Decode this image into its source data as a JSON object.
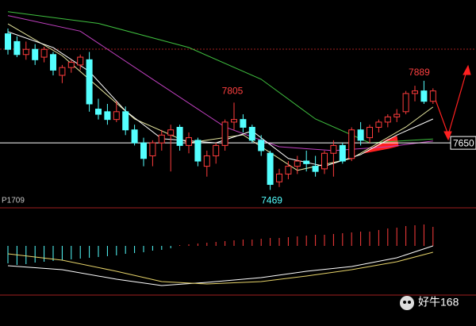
{
  "chart_data": {
    "type": "candlestick",
    "label": "P1709",
    "watermark": "好牛168",
    "ylim": [
      7400,
      8200
    ],
    "price_line": 7650,
    "up_color": "#ff3c3c",
    "down_color": "#54ffff",
    "open": [
      8070,
      8040,
      7990,
      8010,
      7980,
      7990,
      7910,
      7940,
      7950,
      7970,
      7780,
      7770,
      7740,
      7770,
      7700,
      7650,
      7600,
      7650,
      7680,
      7710,
      7640,
      7660,
      7560,
      7600,
      7640,
      7730,
      7740,
      7710,
      7660,
      7610,
      7500,
      7530,
      7560,
      7580,
      7560,
      7550,
      7610,
      7640,
      7590,
      7700,
      7670,
      7710,
      7730,
      7750,
      7770,
      7840,
      7850,
      7810
    ],
    "high": [
      8090,
      8060,
      8040,
      8030,
      8020,
      8000,
      7950,
      7970,
      7990,
      8000,
      7820,
      7800,
      7810,
      7790,
      7720,
      7670,
      7660,
      7700,
      7720,
      7720,
      7690,
      7670,
      7620,
      7650,
      7740,
      7805,
      7760,
      7720,
      7680,
      7620,
      7550,
      7580,
      7600,
      7620,
      7600,
      7620,
      7660,
      7650,
      7710,
      7730,
      7720,
      7740,
      7760,
      7780,
      7850,
      7870,
      7889,
      7860
    ],
    "low": [
      7990,
      7980,
      7970,
      7950,
      7960,
      7910,
      7880,
      7920,
      7930,
      7770,
      7740,
      7720,
      7730,
      7680,
      7640,
      7560,
      7560,
      7620,
      7540,
      7620,
      7610,
      7560,
      7520,
      7570,
      7620,
      7700,
      7690,
      7650,
      7600,
      7469,
      7480,
      7510,
      7530,
      7540,
      7520,
      7530,
      7520,
      7570,
      7580,
      7640,
      7650,
      7690,
      7710,
      7730,
      7760,
      7810,
      7800,
      7800
    ],
    "close": [
      8010,
      7990,
      8010,
      7970,
      8010,
      7930,
      7940,
      7960,
      7980,
      7800,
      7760,
      7740,
      7770,
      7700,
      7650,
      7590,
      7650,
      7680,
      7700,
      7640,
      7670,
      7580,
      7600,
      7640,
      7730,
      7740,
      7710,
      7660,
      7620,
      7490,
      7530,
      7560,
      7580,
      7570,
      7540,
      7610,
      7640,
      7580,
      7700,
      7660,
      7710,
      7730,
      7750,
      7760,
      7840,
      7850,
      7810,
      7850
    ],
    "lines": [
      {
        "color": "#3fbf3f",
        "x": [
          0,
          10,
          20,
          28,
          34,
          40,
          47
        ],
        "values": [
          8155,
          8110,
          8017,
          7895,
          7742,
          7650,
          7665
        ]
      },
      {
        "color": "#c040c0",
        "x": [
          0,
          8,
          16,
          24,
          30,
          36,
          42,
          47
        ],
        "values": [
          8140,
          8080,
          7895,
          7711,
          7635,
          7620,
          7635,
          7657
        ]
      },
      {
        "color": "#e8e8a0",
        "x": [
          0,
          6,
          14,
          20,
          26,
          32,
          38,
          44,
          47
        ],
        "values": [
          8108,
          7986,
          7742,
          7650,
          7681,
          7544,
          7590,
          7711,
          7788
        ]
      },
      {
        "color": "#ffffff",
        "x": [
          0,
          5,
          9,
          13,
          17,
          23,
          27,
          31,
          35,
          39,
          43,
          47
        ],
        "values": [
          8078,
          8017,
          7925,
          7773,
          7666,
          7650,
          7696,
          7590,
          7560,
          7605,
          7680,
          7742
        ]
      }
    ],
    "macd": {
      "ylim": [
        -60,
        48
      ],
      "hist": [
        -22,
        -24,
        -23,
        -21,
        -20,
        -19,
        -18,
        -17,
        -16,
        -15,
        -14,
        -13,
        -12,
        -10,
        -9,
        -8,
        -6,
        -5,
        -3,
        1,
        2,
        3,
        4,
        5,
        6,
        7,
        8,
        8,
        9,
        10,
        10,
        11,
        12,
        13,
        14,
        14,
        15,
        16,
        17,
        18,
        18,
        20,
        22,
        23,
        25,
        26,
        27,
        24
      ],
      "lines": [
        {
          "color": "#ffffff",
          "x": [
            0,
            6,
            12,
            17,
            22,
            28,
            33,
            38,
            43,
            47
          ],
          "values": [
            -25,
            -30,
            -42,
            -50,
            -46,
            -40,
            -32,
            -26,
            -15,
            0
          ]
        },
        {
          "color": "#e6d36a",
          "x": [
            0,
            6,
            12,
            17,
            22,
            28,
            33,
            38,
            43,
            47
          ],
          "values": [
            -10,
            -18,
            -32,
            -45,
            -48,
            -45,
            -38,
            -30,
            -20,
            -8
          ]
        }
      ]
    }
  }
}
